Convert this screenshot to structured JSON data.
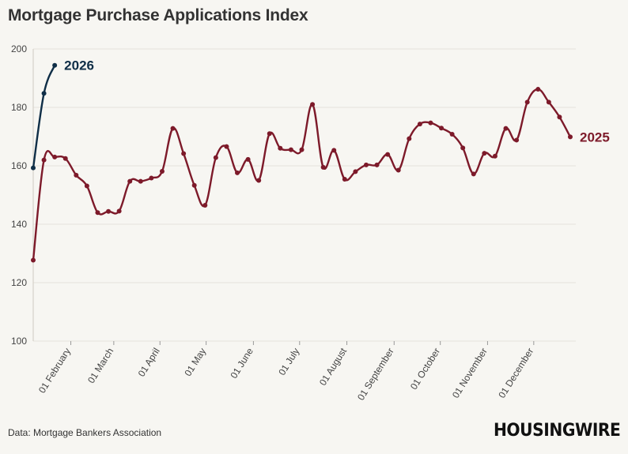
{
  "title": "Mortgage Purchase Applications Index",
  "source": "Data: Mortgage Bankers Association",
  "logo": "HOUSINGWIRE",
  "chart_data": {
    "type": "line",
    "title": "Mortgage Purchase Applications Index",
    "xlabel": "",
    "ylabel": "",
    "ylim": [
      100,
      200
    ],
    "yticks": [
      100,
      120,
      140,
      160,
      180,
      200
    ],
    "grid": "horizontal",
    "legend": "end-labels",
    "xticks": [
      {
        "label": "01 February",
        "week": 3.5
      },
      {
        "label": "01 March",
        "week": 7.5
      },
      {
        "label": "01 April",
        "week": 11.8
      },
      {
        "label": "01 May",
        "week": 16.1
      },
      {
        "label": "01 June",
        "week": 20.5
      },
      {
        "label": "01 July",
        "week": 24.8
      },
      {
        "label": "01 August",
        "week": 29.2
      },
      {
        "label": "01 September",
        "week": 33.6
      },
      {
        "label": "01 October",
        "week": 37.9
      },
      {
        "label": "01 November",
        "week": 42.3
      },
      {
        "label": "01 December",
        "week": 46.6
      }
    ],
    "series": [
      {
        "name": "2025",
        "color": "#7d1a2a",
        "values": [
          127.7,
          162,
          163,
          162.5,
          156.8,
          153.1,
          144,
          144.4,
          144.5,
          154.7,
          154.7,
          155.8,
          158.1,
          172.8,
          164.2,
          153.3,
          146.5,
          162.8,
          166.6,
          157.6,
          162.2,
          155,
          171,
          166,
          165.5,
          165.5,
          181,
          159.5,
          165.3,
          155.4,
          158,
          160.3,
          160.3,
          163.9,
          158.5,
          169.3,
          174.3,
          174.7,
          172.9,
          170.8,
          166.1,
          157.2,
          164.3,
          163.3,
          172.8,
          168.8,
          181.8,
          186.2,
          181.8,
          176.7,
          169.9
        ]
      },
      {
        "name": "2026",
        "color": "#0f2e47",
        "values": [
          159.3,
          184.8,
          194.4
        ]
      }
    ]
  }
}
